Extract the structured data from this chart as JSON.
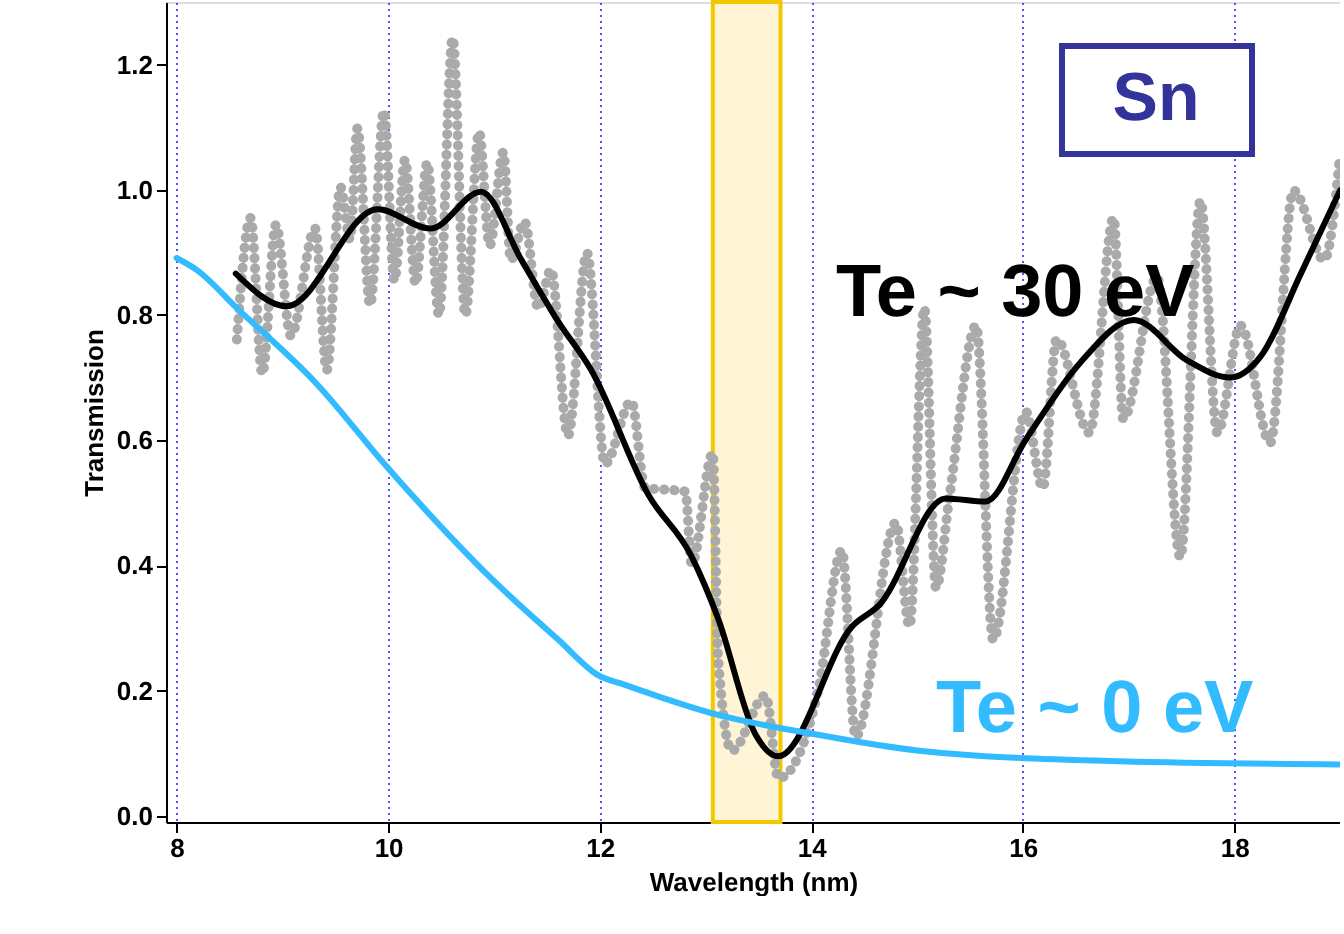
{
  "chart_data": {
    "type": "line",
    "xlabel": "Wavelength (nm)",
    "ylabel": "Transmission",
    "xlim": [
      7.9,
      19
    ],
    "xticks": [
      8,
      10,
      12,
      14,
      16,
      18
    ],
    "ylim": [
      -0.01,
      1.3
    ],
    "yticks": [
      {
        "value": 0,
        "label": "0.0"
      },
      0.2,
      0.4,
      0.6,
      0.8,
      {
        "value": 1,
        "label": "1.0"
      },
      1.2
    ],
    "grid": "x",
    "annotations": [
      "Sn"
    ],
    "bands": [
      {
        "axis": "x",
        "from": 13.07,
        "to": 13.71,
        "color": "#fff5d6"
      }
    ],
    "series": [
      {
        "color": "#aaaaaa",
        "line_style": "dotted",
        "x": [
          8.57,
          8.7,
          8.81,
          8.94,
          9.08,
          9.31,
          9.42,
          9.55,
          9.64,
          9.71,
          9.83,
          9.96,
          10.06,
          10.16,
          10.26,
          10.37,
          10.48,
          10.61,
          10.73,
          10.86,
          10.96,
          11.09,
          11.16,
          11.29,
          11.42,
          11.54,
          11.7,
          11.88,
          12.05,
          12.3,
          12.43,
          12.81,
          12.87,
          13.07,
          13.12,
          13.25,
          13.57,
          13.69,
          14.07,
          14.29,
          14.42,
          14.8,
          14.93,
          15.07,
          15.18,
          15.31,
          15.56,
          15.72,
          16.03,
          16.19,
          16.32,
          16.63,
          16.86,
          16.95,
          17.27,
          17.49,
          17.68,
          17.84,
          18.06,
          18.34,
          18.56,
          18.85,
          19.0
        ],
        "values": [
          0.761,
          0.955,
          0.706,
          0.944,
          0.767,
          0.938,
          0.712,
          1.004,
          0.921,
          1.098,
          0.816,
          1.126,
          0.855,
          1.048,
          0.85,
          1.043,
          0.8,
          1.242,
          0.8,
          1.092,
          0.911,
          1.06,
          0.888,
          0.949,
          0.811,
          0.872,
          0.607,
          0.899,
          0.562,
          0.662,
          0.524,
          0.518,
          0.402,
          0.579,
          0.253,
          0.104,
          0.192,
          0.06,
          0.203,
          0.424,
          0.126,
          0.468,
          0.303,
          0.811,
          0.364,
          0.513,
          0.783,
          0.281,
          0.645,
          0.524,
          0.761,
          0.612,
          0.955,
          0.634,
          0.861,
          0.413,
          0.982,
          0.612,
          0.783,
          0.596,
          0.999,
          0.888,
          1.054
        ]
      },
      {
        "name": "Te ~ 30 eV",
        "color": "#000000",
        "line_style": "solid",
        "x": [
          8.56,
          9.04,
          9.9,
          10.4,
          10.88,
          11.26,
          11.61,
          11.92,
          12.46,
          12.87,
          13.12,
          13.47,
          13.69,
          14.39,
          14.64,
          15.27,
          15.65,
          16.03,
          16.54,
          17.05,
          17.55,
          17.96,
          18.25,
          18.63,
          19.0
        ],
        "values": [
          0.866,
          0.814,
          0.969,
          0.938,
          0.997,
          0.888,
          0.789,
          0.712,
          0.513,
          0.414,
          0.315,
          0.131,
          0.095,
          0.303,
          0.336,
          0.507,
          0.502,
          0.601,
          0.723,
          0.792,
          0.728,
          0.7,
          0.734,
          0.866,
          0.999
        ]
      },
      {
        "name": "Te ~ 0 eV",
        "color": "#33bbff",
        "line_style": "solid",
        "x": [
          8.0,
          8.19,
          8.57,
          9.33,
          9.99,
          10.34,
          10.97,
          11.61,
          11.98,
          12.24,
          13.12,
          14.01,
          15.02,
          16.92,
          19.0
        ],
        "values": [
          0.891,
          0.872,
          0.811,
          0.689,
          0.557,
          0.491,
          0.38,
          0.281,
          0.225,
          0.209,
          0.161,
          0.131,
          0.104,
          0.087,
          0.082
        ]
      }
    ]
  }
}
